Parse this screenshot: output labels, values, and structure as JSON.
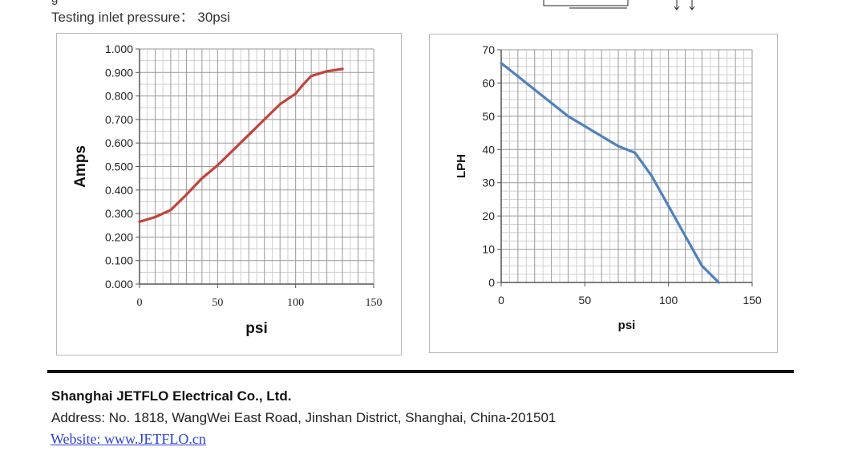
{
  "header": {
    "top_fragment": "g",
    "inlet_pressure": "Testing inlet pressure： 30psi"
  },
  "colors": {
    "current_line": "#c0443d",
    "flow_line": "#4f81bd",
    "grid_major": "#999999",
    "grid_minor": "#cfcfcf"
  },
  "chart_data": [
    {
      "type": "line",
      "xlabel": "psi",
      "ylabel": "Amps",
      "xlim": [
        0,
        150
      ],
      "ylim": [
        0,
        1.0
      ],
      "x_ticks": [
        "0",
        "50",
        "100",
        "150"
      ],
      "y_ticks": [
        "0.000",
        "0.100",
        "0.200",
        "0.300",
        "0.400",
        "0.500",
        "0.600",
        "0.700",
        "0.800",
        "0.900",
        "1.000"
      ],
      "grid": true,
      "series": [
        {
          "x": [
            0,
            10,
            20,
            30,
            40,
            50,
            60,
            70,
            80,
            90,
            100,
            105,
            110,
            120,
            130
          ],
          "y": [
            0.265,
            0.285,
            0.315,
            0.38,
            0.45,
            0.505,
            0.57,
            0.635,
            0.7,
            0.765,
            0.81,
            0.85,
            0.885,
            0.905,
            0.915
          ],
          "color": "#c0443d"
        }
      ]
    },
    {
      "type": "line",
      "xlabel": "psi",
      "ylabel": "LPH",
      "xlim": [
        0,
        150
      ],
      "ylim": [
        0,
        70
      ],
      "x_ticks": [
        "0",
        "50",
        "100",
        "150"
      ],
      "y_ticks": [
        "0",
        "10",
        "20",
        "30",
        "40",
        "50",
        "60",
        "70"
      ],
      "grid": true,
      "series": [
        {
          "x": [
            0,
            10,
            20,
            30,
            40,
            50,
            60,
            70,
            80,
            90,
            100,
            110,
            120,
            130
          ],
          "y": [
            66,
            62,
            58,
            54,
            50,
            47,
            44,
            41,
            39,
            32,
            23,
            14,
            5,
            0
          ],
          "color": "#4f81bd"
        }
      ]
    }
  ],
  "footer": {
    "company": "Shanghai JETFLO Electrical Co., Ltd.",
    "address": "Address: No. 1818, WangWei East Road, Jinshan District, Shanghai, China-201501",
    "website": "Website: www.JETFLO.cn"
  }
}
